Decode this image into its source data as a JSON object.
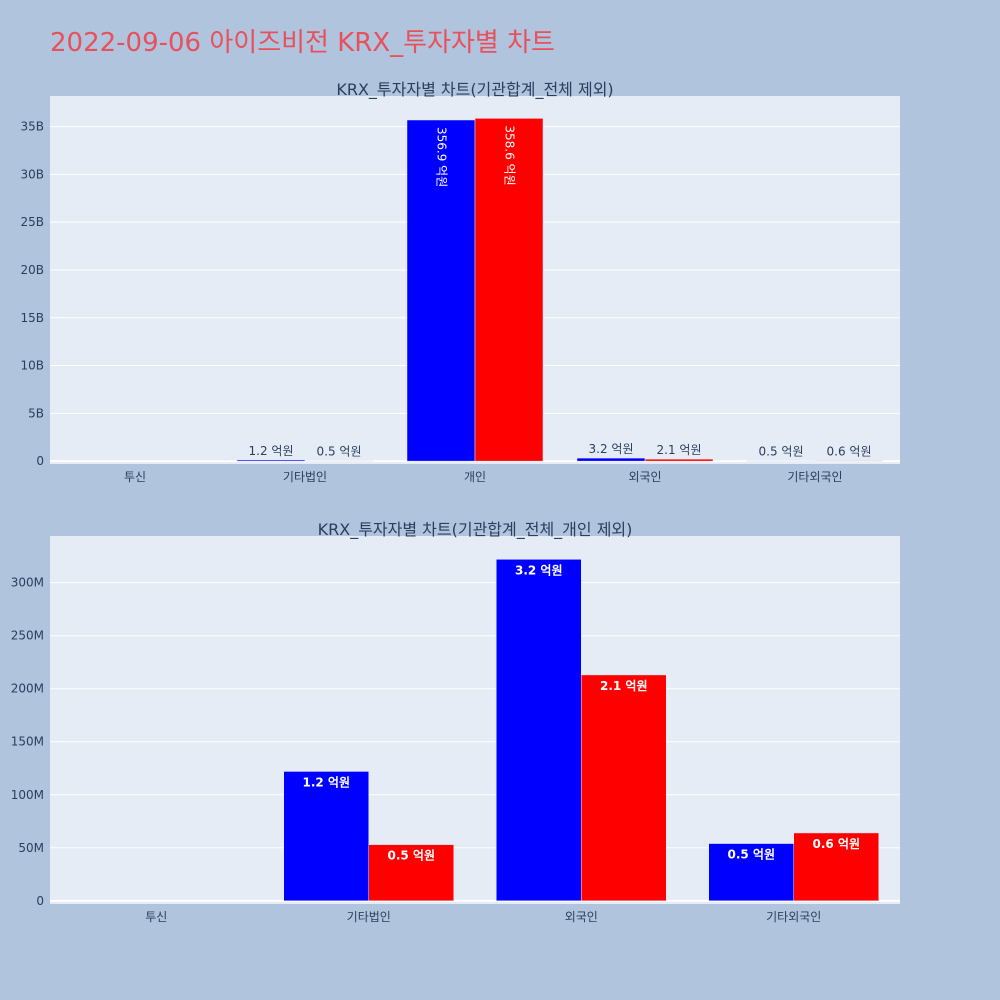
{
  "page": {
    "title": "2022-09-06 아이즈비전 KRX_투자자별 차트"
  },
  "chart_data": [
    {
      "type": "bar",
      "title": "KRX_투자자별 차트(기관합계_전체 제외)",
      "categories": [
        "투신",
        "기타법인",
        "개인",
        "외국인",
        "기타외국인"
      ],
      "series": [
        {
          "color": "#0000ff",
          "values": [
            0,
            120000000,
            35690000000,
            320000000,
            50000000
          ],
          "labels": [
            "",
            "1.2 억원",
            "356.9 억원",
            "3.2 억원",
            "0.5 억원"
          ]
        },
        {
          "color": "#ff0000",
          "values": [
            0,
            50000000,
            35860000000,
            210000000,
            60000000
          ],
          "labels": [
            "",
            "0.5 억원",
            "358.6 억원",
            "2.1 억원",
            "0.6 억원"
          ]
        }
      ],
      "ylim": [
        -300000000,
        38200000000
      ],
      "yticks": [
        0,
        5000000000,
        10000000000,
        15000000000,
        20000000000,
        25000000000,
        30000000000,
        35000000000
      ],
      "ytick_labels": [
        "0",
        "5B",
        "10B",
        "15B",
        "20B",
        "25B",
        "30B",
        "35B"
      ],
      "grid": true,
      "xlabel": "",
      "ylabel": ""
    },
    {
      "type": "bar",
      "title": "KRX_투자자별 차트(기관합계_전체_개인 제외)",
      "categories": [
        "투신",
        "기타법인",
        "외국인",
        "기타외국인"
      ],
      "series": [
        {
          "color": "#0000ff",
          "values": [
            0,
            122000000,
            322000000,
            54000000
          ],
          "labels": [
            "",
            "1.2 억원",
            "3.2 억원",
            "0.5 억원"
          ]
        },
        {
          "color": "#ff0000",
          "values": [
            0,
            53000000,
            213000000,
            64000000
          ],
          "labels": [
            "",
            "0.5 억원",
            "2.1 억원",
            "0.6 억원"
          ]
        }
      ],
      "ylim": [
        -3000000,
        344000000
      ],
      "yticks": [
        0,
        50000000,
        100000000,
        150000000,
        200000000,
        250000000,
        300000000
      ],
      "ytick_labels": [
        "0",
        "50M",
        "100M",
        "150M",
        "200M",
        "250M",
        "300M"
      ],
      "grid": true,
      "xlabel": "",
      "ylabel": ""
    }
  ]
}
